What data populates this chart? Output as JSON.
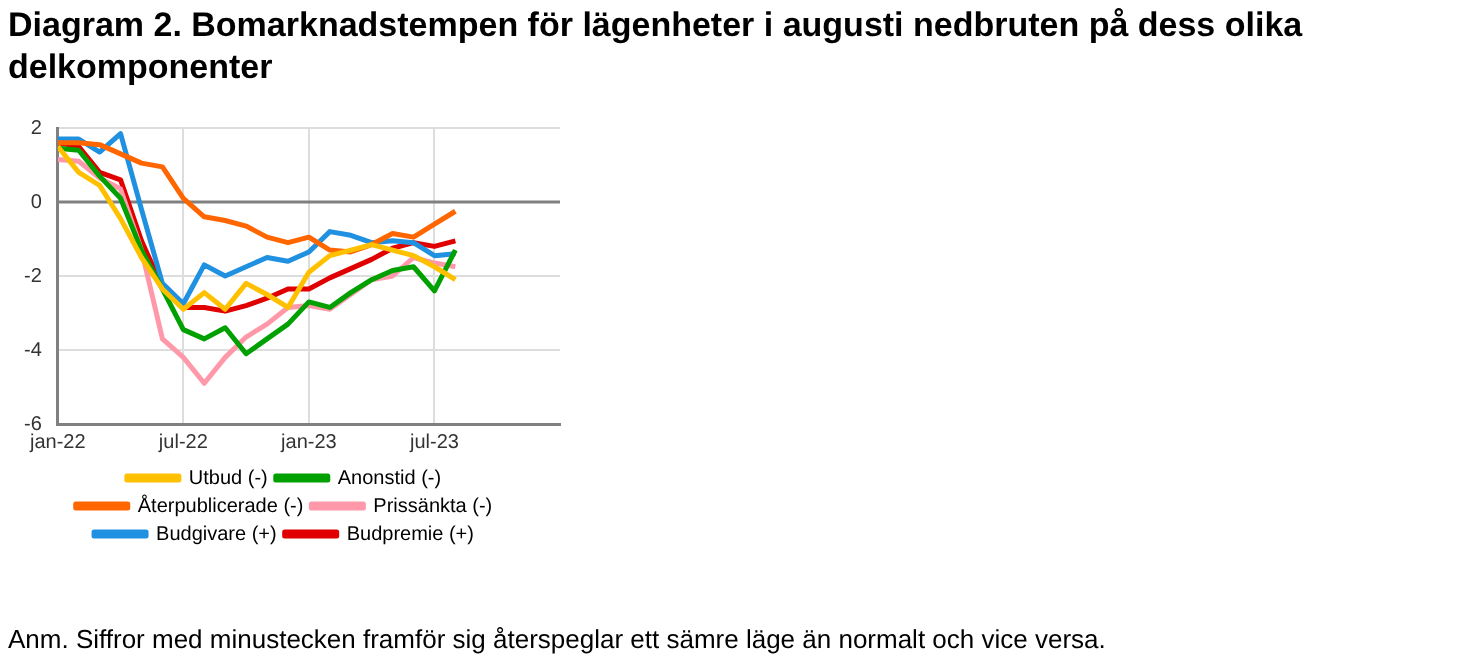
{
  "chart_data": {
    "type": "line",
    "title": "Diagram 2. Bomarknadstempen för lägenheter i augusti nedbruten på dess olika delkomponenter",
    "x": [
      "2022-01",
      "2022-02",
      "2022-03",
      "2022-04",
      "2022-05",
      "2022-06",
      "2022-07",
      "2022-08",
      "2022-09",
      "2022-10",
      "2022-11",
      "2022-12",
      "2023-01",
      "2023-02",
      "2023-03",
      "2023-04",
      "2023-05",
      "2023-06",
      "2023-07",
      "2023-08"
    ],
    "xlim": [
      "2022-01",
      "2024-01"
    ],
    "xticks": [
      {
        "value": "2022-01",
        "label": "jan-22"
      },
      {
        "value": "2022-07",
        "label": "jul-22"
      },
      {
        "value": "2023-01",
        "label": "jan-23"
      },
      {
        "value": "2023-07",
        "label": "jul-23"
      }
    ],
    "ylim": [
      -6,
      2
    ],
    "yticks": [
      -6,
      -4,
      -2,
      0,
      2
    ],
    "grid": true,
    "legend": "bottom",
    "marker": "none",
    "line_style": "solid",
    "ref_lines": [
      {
        "axis": "y",
        "value": 0,
        "color": "#808080"
      }
    ],
    "series": [
      {
        "name": "Utbud (-)",
        "color": "#ffc000",
        "values": [
          1.5,
          0.8,
          0.45,
          -0.45,
          -1.5,
          -2.35,
          -2.9,
          -2.45,
          -2.9,
          -2.2,
          -2.5,
          -2.85,
          -1.9,
          -1.45,
          -1.3,
          -1.15,
          -1.3,
          -1.45,
          -1.75,
          -2.1
        ]
      },
      {
        "name": "Anonstid (-)",
        "color": "#00a000",
        "values": [
          1.45,
          1.4,
          0.7,
          0.1,
          -1.3,
          -2.35,
          -3.45,
          -3.7,
          -3.4,
          -4.1,
          -3.7,
          -3.3,
          -2.7,
          -2.85,
          -2.45,
          -2.1,
          -1.85,
          -1.75,
          -2.4,
          -1.3
        ]
      },
      {
        "name": "Återpublicerade (-)",
        "color": "#ff6600",
        "values": [
          1.6,
          1.6,
          1.55,
          1.3,
          1.05,
          0.95,
          0.1,
          -0.4,
          -0.5,
          -0.65,
          -0.95,
          -1.1,
          -0.95,
          -1.3,
          -1.35,
          -1.15,
          -0.85,
          -0.95,
          -0.6,
          -0.25
        ]
      },
      {
        "name": "Prissänkta (-)",
        "color": "#ff99aa",
        "values": [
          1.15,
          1.1,
          0.65,
          0.35,
          -1.3,
          -3.7,
          -4.2,
          -4.9,
          -4.2,
          -3.65,
          -3.3,
          -2.85,
          -2.8,
          -2.9,
          -2.5,
          -2.1,
          -2.0,
          -1.5,
          -1.65,
          -1.75
        ]
      },
      {
        "name": "Budgivare (+)",
        "color": "#2090e0",
        "values": [
          1.7,
          1.7,
          1.35,
          1.85,
          -0.2,
          -2.2,
          -2.75,
          -1.7,
          -2.0,
          -1.75,
          -1.5,
          -1.6,
          -1.35,
          -0.8,
          -0.9,
          -1.1,
          -1.05,
          -1.1,
          -1.45,
          -1.4
        ]
      },
      {
        "name": "Budpremie (+)",
        "color": "#e00000",
        "values": [
          1.6,
          1.5,
          0.8,
          0.6,
          -1.05,
          -2.3,
          -2.85,
          -2.85,
          -2.95,
          -2.8,
          -2.6,
          -2.35,
          -2.35,
          -2.05,
          -1.8,
          -1.55,
          -1.25,
          -1.1,
          -1.2,
          -1.05
        ]
      }
    ],
    "annotations": [
      "Anm. Siffror med minustecken framför sig återspeglar ett sämre läge än normalt och vice versa."
    ]
  }
}
